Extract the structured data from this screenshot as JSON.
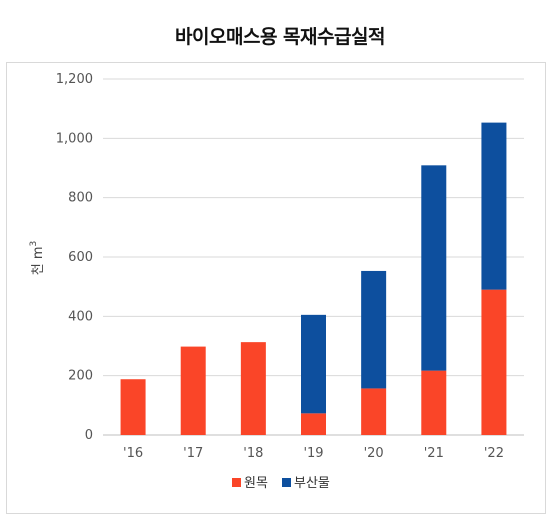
{
  "chart_data": {
    "type": "bar",
    "stacked": true,
    "title": "바이오매스용 목재수급실적",
    "ylabel": "천 m",
    "ylabel_superscript": "3",
    "xlabel": "",
    "categories": [
      "'16",
      "'17",
      "'18",
      "'19",
      "'20",
      "'21",
      "'22"
    ],
    "series": [
      {
        "name": "원목",
        "color": "#fa4528",
        "values": [
          188,
          298,
          313,
          73,
          157,
          217,
          490
        ]
      },
      {
        "name": "부산물",
        "color": "#0d4f9e",
        "values": [
          0,
          0,
          0,
          332,
          396,
          692,
          563
        ]
      }
    ],
    "ylim": [
      0,
      1200
    ],
    "yticks": [
      0,
      200,
      400,
      600,
      800,
      1000,
      1200
    ],
    "ytick_labels": [
      "0",
      "200",
      "400",
      "600",
      "800",
      "1,000",
      "1,200"
    ],
    "grid": true,
    "legend": "bottom"
  }
}
